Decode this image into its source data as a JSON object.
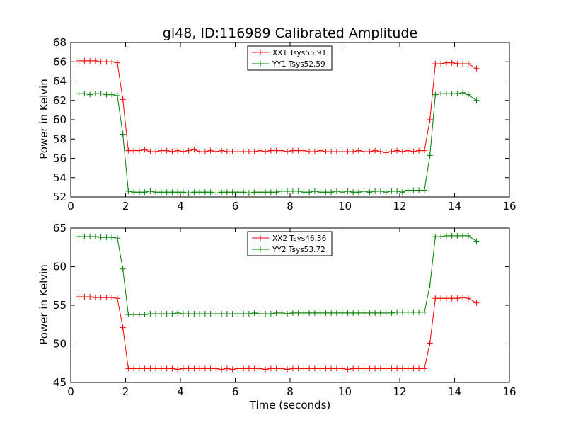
{
  "chart_data": [
    {
      "type": "line",
      "title": "gl48, ID:116989 Calibrated Amplitude",
      "xlabel": "",
      "ylabel": "Power in Kelvin",
      "xlim": [
        0,
        16
      ],
      "ylim": [
        52,
        68
      ],
      "xticks": [
        0,
        2,
        4,
        6,
        8,
        10,
        12,
        14,
        16
      ],
      "yticks": [
        52,
        54,
        56,
        58,
        60,
        62,
        64,
        66,
        68
      ],
      "legend_position": "top-center",
      "grid": false,
      "x": [
        0.3,
        0.5,
        0.7,
        0.9,
        1.1,
        1.3,
        1.5,
        1.7,
        1.9,
        2.1,
        2.3,
        2.5,
        2.7,
        2.9,
        3.1,
        3.3,
        3.5,
        3.7,
        3.9,
        4.1,
        4.3,
        4.5,
        4.7,
        4.9,
        5.1,
        5.3,
        5.5,
        5.7,
        5.9,
        6.1,
        6.3,
        6.5,
        6.7,
        6.9,
        7.1,
        7.3,
        7.5,
        7.7,
        7.9,
        8.1,
        8.3,
        8.5,
        8.7,
        8.9,
        9.1,
        9.3,
        9.5,
        9.7,
        9.9,
        10.1,
        10.3,
        10.5,
        10.7,
        10.9,
        11.1,
        11.3,
        11.5,
        11.7,
        11.9,
        12.1,
        12.3,
        12.5,
        12.7,
        12.9,
        13.1,
        13.3,
        13.5,
        13.7,
        13.9,
        14.1,
        14.3,
        14.5,
        14.8
      ],
      "series": [
        {
          "name": "XX1 Tsys55.91",
          "color": "#ff0000",
          "values": [
            66.1,
            66.1,
            66.1,
            66.1,
            66.0,
            66.0,
            66.0,
            65.9,
            62.1,
            56.8,
            56.8,
            56.8,
            56.9,
            56.7,
            56.7,
            56.8,
            56.8,
            56.7,
            56.8,
            56.7,
            56.8,
            56.9,
            56.7,
            56.7,
            56.8,
            56.7,
            56.8,
            56.7,
            56.7,
            56.7,
            56.7,
            56.7,
            56.7,
            56.8,
            56.7,
            56.8,
            56.8,
            56.8,
            56.7,
            56.8,
            56.8,
            56.8,
            56.7,
            56.7,
            56.8,
            56.7,
            56.7,
            56.7,
            56.7,
            56.7,
            56.7,
            56.8,
            56.7,
            56.7,
            56.8,
            56.7,
            56.6,
            56.7,
            56.8,
            56.7,
            56.8,
            56.7,
            56.8,
            56.8,
            60.0,
            65.8,
            65.8,
            65.9,
            65.9,
            65.8,
            65.8,
            65.8,
            65.3
          ]
        },
        {
          "name": "YY1 Tsys52.59",
          "color": "#008000",
          "values": [
            62.7,
            62.7,
            62.6,
            62.7,
            62.7,
            62.6,
            62.6,
            62.5,
            58.5,
            52.6,
            52.5,
            52.5,
            52.5,
            52.6,
            52.5,
            52.5,
            52.5,
            52.5,
            52.5,
            52.5,
            52.4,
            52.5,
            52.5,
            52.5,
            52.5,
            52.4,
            52.5,
            52.5,
            52.5,
            52.5,
            52.5,
            52.4,
            52.5,
            52.5,
            52.5,
            52.5,
            52.5,
            52.6,
            52.6,
            52.6,
            52.6,
            52.5,
            52.5,
            52.6,
            52.5,
            52.5,
            52.5,
            52.6,
            52.5,
            52.6,
            52.5,
            52.5,
            52.6,
            52.5,
            52.6,
            52.6,
            52.5,
            52.6,
            52.6,
            52.5,
            52.7,
            52.7,
            52.7,
            52.7,
            56.3,
            62.6,
            62.7,
            62.7,
            62.7,
            62.7,
            62.8,
            62.6,
            62.0
          ]
        }
      ]
    },
    {
      "type": "line",
      "title": "",
      "xlabel": "Time (seconds)",
      "ylabel": "Power in Kelvin",
      "xlim": [
        0,
        16
      ],
      "ylim": [
        45,
        65
      ],
      "xticks": [
        0,
        2,
        4,
        6,
        8,
        10,
        12,
        14,
        16
      ],
      "yticks": [
        45,
        50,
        55,
        60,
        65
      ],
      "legend_position": "top-center",
      "grid": false,
      "x": [
        0.3,
        0.5,
        0.7,
        0.9,
        1.1,
        1.3,
        1.5,
        1.7,
        1.9,
        2.1,
        2.3,
        2.5,
        2.7,
        2.9,
        3.1,
        3.3,
        3.5,
        3.7,
        3.9,
        4.1,
        4.3,
        4.5,
        4.7,
        4.9,
        5.1,
        5.3,
        5.5,
        5.7,
        5.9,
        6.1,
        6.3,
        6.5,
        6.7,
        6.9,
        7.1,
        7.3,
        7.5,
        7.7,
        7.9,
        8.1,
        8.3,
        8.5,
        8.7,
        8.9,
        9.1,
        9.3,
        9.5,
        9.7,
        9.9,
        10.1,
        10.3,
        10.5,
        10.7,
        10.9,
        11.1,
        11.3,
        11.5,
        11.7,
        11.9,
        12.1,
        12.3,
        12.5,
        12.7,
        12.9,
        13.1,
        13.3,
        13.5,
        13.7,
        13.9,
        14.1,
        14.3,
        14.5,
        14.8
      ],
      "series": [
        {
          "name": "XX2 Tsys46.36",
          "color": "#ff0000",
          "values": [
            56.1,
            56.1,
            56.1,
            56.0,
            56.0,
            56.0,
            56.0,
            55.9,
            52.1,
            46.8,
            46.8,
            46.8,
            46.8,
            46.8,
            46.8,
            46.8,
            46.8,
            46.8,
            46.7,
            46.8,
            46.8,
            46.8,
            46.8,
            46.8,
            46.8,
            46.8,
            46.7,
            46.8,
            46.7,
            46.8,
            46.8,
            46.8,
            46.8,
            46.8,
            46.7,
            46.8,
            46.8,
            46.8,
            46.7,
            46.8,
            46.8,
            46.8,
            46.8,
            46.8,
            46.8,
            46.8,
            46.8,
            46.8,
            46.8,
            46.7,
            46.8,
            46.8,
            46.8,
            46.8,
            46.8,
            46.8,
            46.8,
            46.8,
            46.8,
            46.8,
            46.8,
            46.8,
            46.8,
            46.8,
            50.1,
            55.9,
            55.9,
            55.9,
            55.9,
            55.9,
            56.0,
            55.9,
            55.3
          ]
        },
        {
          "name": "YY2 Tsys53.72",
          "color": "#008000",
          "values": [
            63.9,
            63.9,
            63.9,
            63.9,
            63.8,
            63.8,
            63.8,
            63.7,
            59.7,
            53.8,
            53.8,
            53.8,
            53.8,
            53.9,
            53.9,
            53.9,
            53.9,
            53.9,
            54.0,
            53.9,
            53.9,
            53.9,
            53.9,
            53.9,
            53.9,
            53.9,
            53.9,
            53.9,
            53.9,
            53.9,
            53.9,
            53.9,
            54.0,
            53.9,
            53.9,
            53.9,
            54.0,
            54.0,
            53.9,
            54.0,
            54.0,
            54.0,
            54.0,
            54.0,
            54.0,
            54.0,
            54.0,
            54.0,
            54.0,
            54.0,
            54.0,
            54.0,
            54.0,
            54.0,
            54.0,
            54.0,
            54.0,
            54.0,
            54.1,
            54.1,
            54.1,
            54.1,
            54.1,
            54.1,
            57.6,
            63.9,
            63.9,
            64.0,
            64.0,
            64.0,
            64.0,
            64.0,
            63.3
          ]
        }
      ]
    }
  ]
}
